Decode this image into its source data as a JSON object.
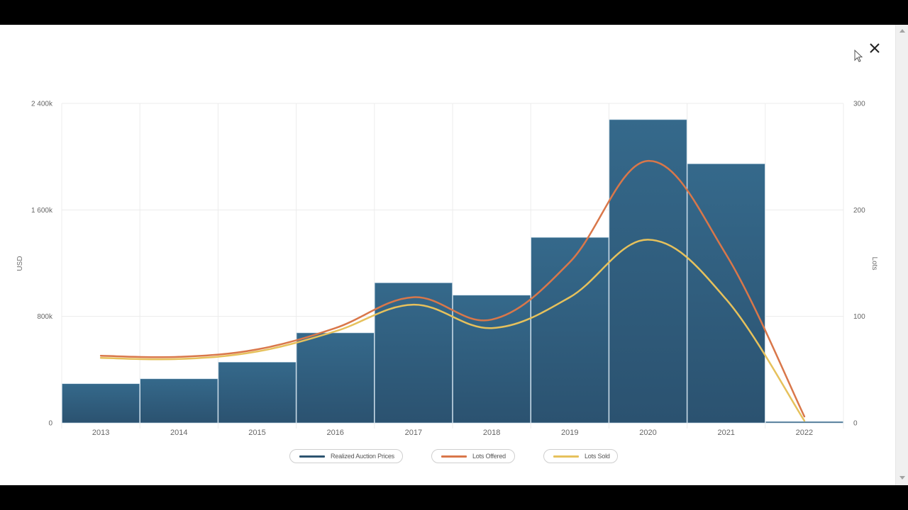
{
  "modal": {
    "close_icon": "close-icon",
    "cursor_icon": "mouse-pointer-icon"
  },
  "axes": {
    "left_title": "USD",
    "right_title": "Lots",
    "left_ticks": [
      "0",
      "800k",
      "1 600k",
      "2 400k"
    ],
    "right_ticks": [
      "0",
      "100",
      "200",
      "300"
    ]
  },
  "legend": [
    {
      "label": "Realized Auction Prices",
      "color": "#2d5470"
    },
    {
      "label": "Lots Offered",
      "color": "#d9774a"
    },
    {
      "label": "Lots Sold",
      "color": "#e6c15c"
    }
  ],
  "colors": {
    "bar_top": "#35698b",
    "bar_bottom": "#2b5270",
    "lots_offered": "#d9774a",
    "lots_sold": "#e6c15c",
    "grid": "#ececec"
  },
  "chart_data": {
    "type": "bar",
    "title": "",
    "categories": [
      "2013",
      "2014",
      "2015",
      "2016",
      "2017",
      "2018",
      "2019",
      "2020",
      "2021",
      "2022"
    ],
    "xlabel": "",
    "ylabel": "USD",
    "y2label": "Lots",
    "ylim": [
      0,
      2400000
    ],
    "y2lim": [
      0,
      300
    ],
    "grid": true,
    "legend_position": "bottom",
    "series": [
      {
        "name": "Realized Auction Prices",
        "type": "bar",
        "axis": "left",
        "values": [
          294000,
          331000,
          456000,
          676000,
          1052000,
          959000,
          1393000,
          2278000,
          1946000,
          10000
        ]
      },
      {
        "name": "Lots Offered",
        "type": "line",
        "axis": "right",
        "smooth": true,
        "values": [
          63,
          62,
          69,
          89,
          118,
          97,
          151,
          246,
          158,
          6
        ]
      },
      {
        "name": "Lots Sold",
        "type": "line",
        "axis": "right",
        "smooth": true,
        "values": [
          61,
          60,
          67,
          86,
          111,
          89,
          118,
          172,
          116,
          2
        ]
      }
    ]
  }
}
